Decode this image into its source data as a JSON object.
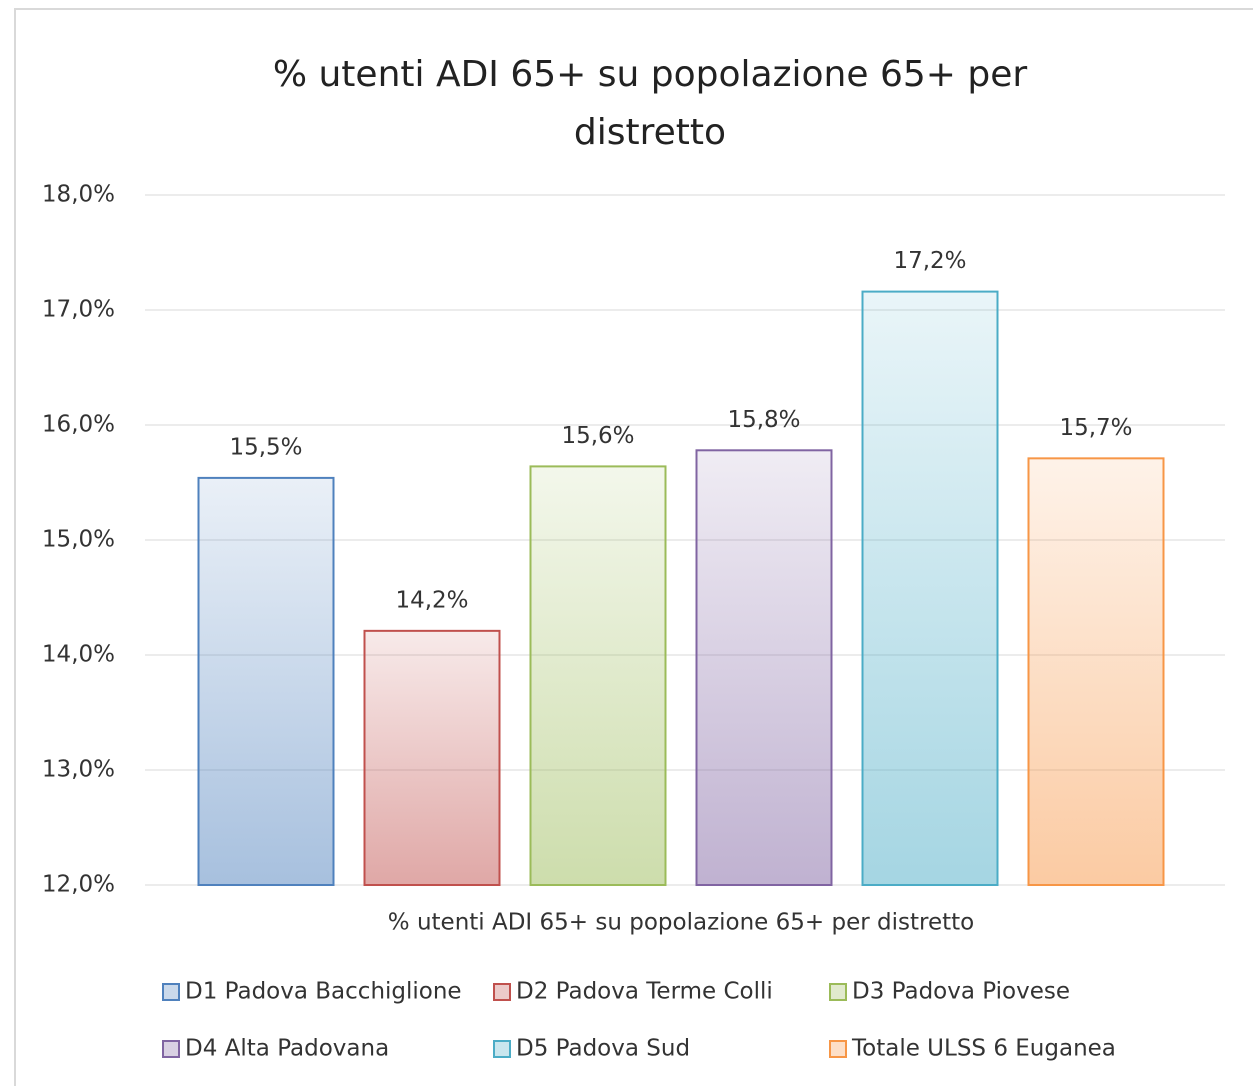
{
  "chart_data": {
    "type": "bar",
    "title": "% utenti ADI 65+ su popolazione 65+ per distretto",
    "categories": [
      "% utenti ADI 65+ su popolazione 65+ per distretto"
    ],
    "series": [
      {
        "name": "D1 Padova Bacchiglione",
        "color": "#4f81bd",
        "values": [
          15.54
        ],
        "value_labels": [
          "15,5%"
        ]
      },
      {
        "name": "D2 Padova Terme Colli",
        "color": "#c0504d",
        "values": [
          14.21
        ],
        "value_labels": [
          "14,2%"
        ]
      },
      {
        "name": "D3 Padova Piovese",
        "color": "#9bbb59",
        "values": [
          15.64
        ],
        "value_labels": [
          "15,6%"
        ]
      },
      {
        "name": "D4 Alta Padovana",
        "color": "#8064a2",
        "values": [
          15.78
        ],
        "value_labels": [
          "15,8%"
        ]
      },
      {
        "name": "D5 Padova Sud",
        "color": "#4bacc6",
        "values": [
          17.16
        ],
        "value_labels": [
          "17,2%"
        ]
      },
      {
        "name": "Totale ULSS 6 Euganea",
        "color": "#f79646",
        "values": [
          15.71
        ],
        "value_labels": [
          "15,7%"
        ]
      }
    ],
    "ylim": [
      12,
      18
    ],
    "yticks": [
      {
        "value": 12,
        "label": "12,0%"
      },
      {
        "value": 13,
        "label": "13,0%"
      },
      {
        "value": 14,
        "label": "14,0%"
      },
      {
        "value": 15,
        "label": "15,0%"
      },
      {
        "value": 16,
        "label": "16,0%"
      },
      {
        "value": 17,
        "label": "17,0%"
      },
      {
        "value": 18,
        "label": "18,0%"
      }
    ],
    "grid": true,
    "legend": "bottom"
  }
}
